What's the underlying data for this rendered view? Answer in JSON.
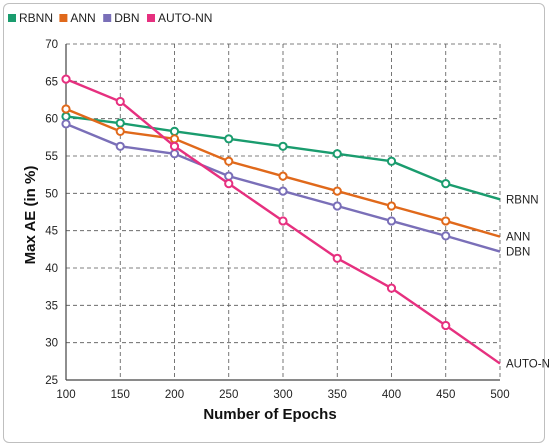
{
  "chart_data": {
    "type": "line",
    "title": "",
    "xlabel": "Number of Epochs",
    "ylabel": "Max AE (in %)",
    "x": [
      100,
      150,
      200,
      250,
      300,
      350,
      400,
      450,
      500
    ],
    "xlim": [
      100,
      500
    ],
    "ylim": [
      25,
      70
    ],
    "yticks": [
      25,
      30,
      35,
      40,
      45,
      50,
      55,
      60,
      65,
      70
    ],
    "grid": true,
    "legend_position": "top-left",
    "series": [
      {
        "name": "RBNN",
        "end_label": "RBNN",
        "color": "#1a9c6e",
        "values": [
          60.3,
          59.4,
          58.3,
          57.3,
          56.3,
          55.3,
          54.3,
          51.3,
          49.2
        ]
      },
      {
        "name": "ANN",
        "end_label": "ANN",
        "color": "#e0691b",
        "values": [
          61.3,
          58.3,
          57.3,
          54.3,
          52.3,
          50.3,
          48.3,
          46.3,
          44.2
        ]
      },
      {
        "name": "DBN",
        "end_label": "DBN",
        "color": "#7a6fb8",
        "values": [
          59.3,
          56.3,
          55.3,
          52.3,
          50.3,
          48.3,
          46.3,
          44.3,
          42.2
        ]
      },
      {
        "name": "AUTO-NN",
        "end_label": "AUTO-NN",
        "color": "#e6307f",
        "values": [
          65.3,
          62.3,
          56.3,
          51.3,
          46.3,
          41.3,
          37.3,
          32.3,
          27.2
        ]
      }
    ]
  }
}
